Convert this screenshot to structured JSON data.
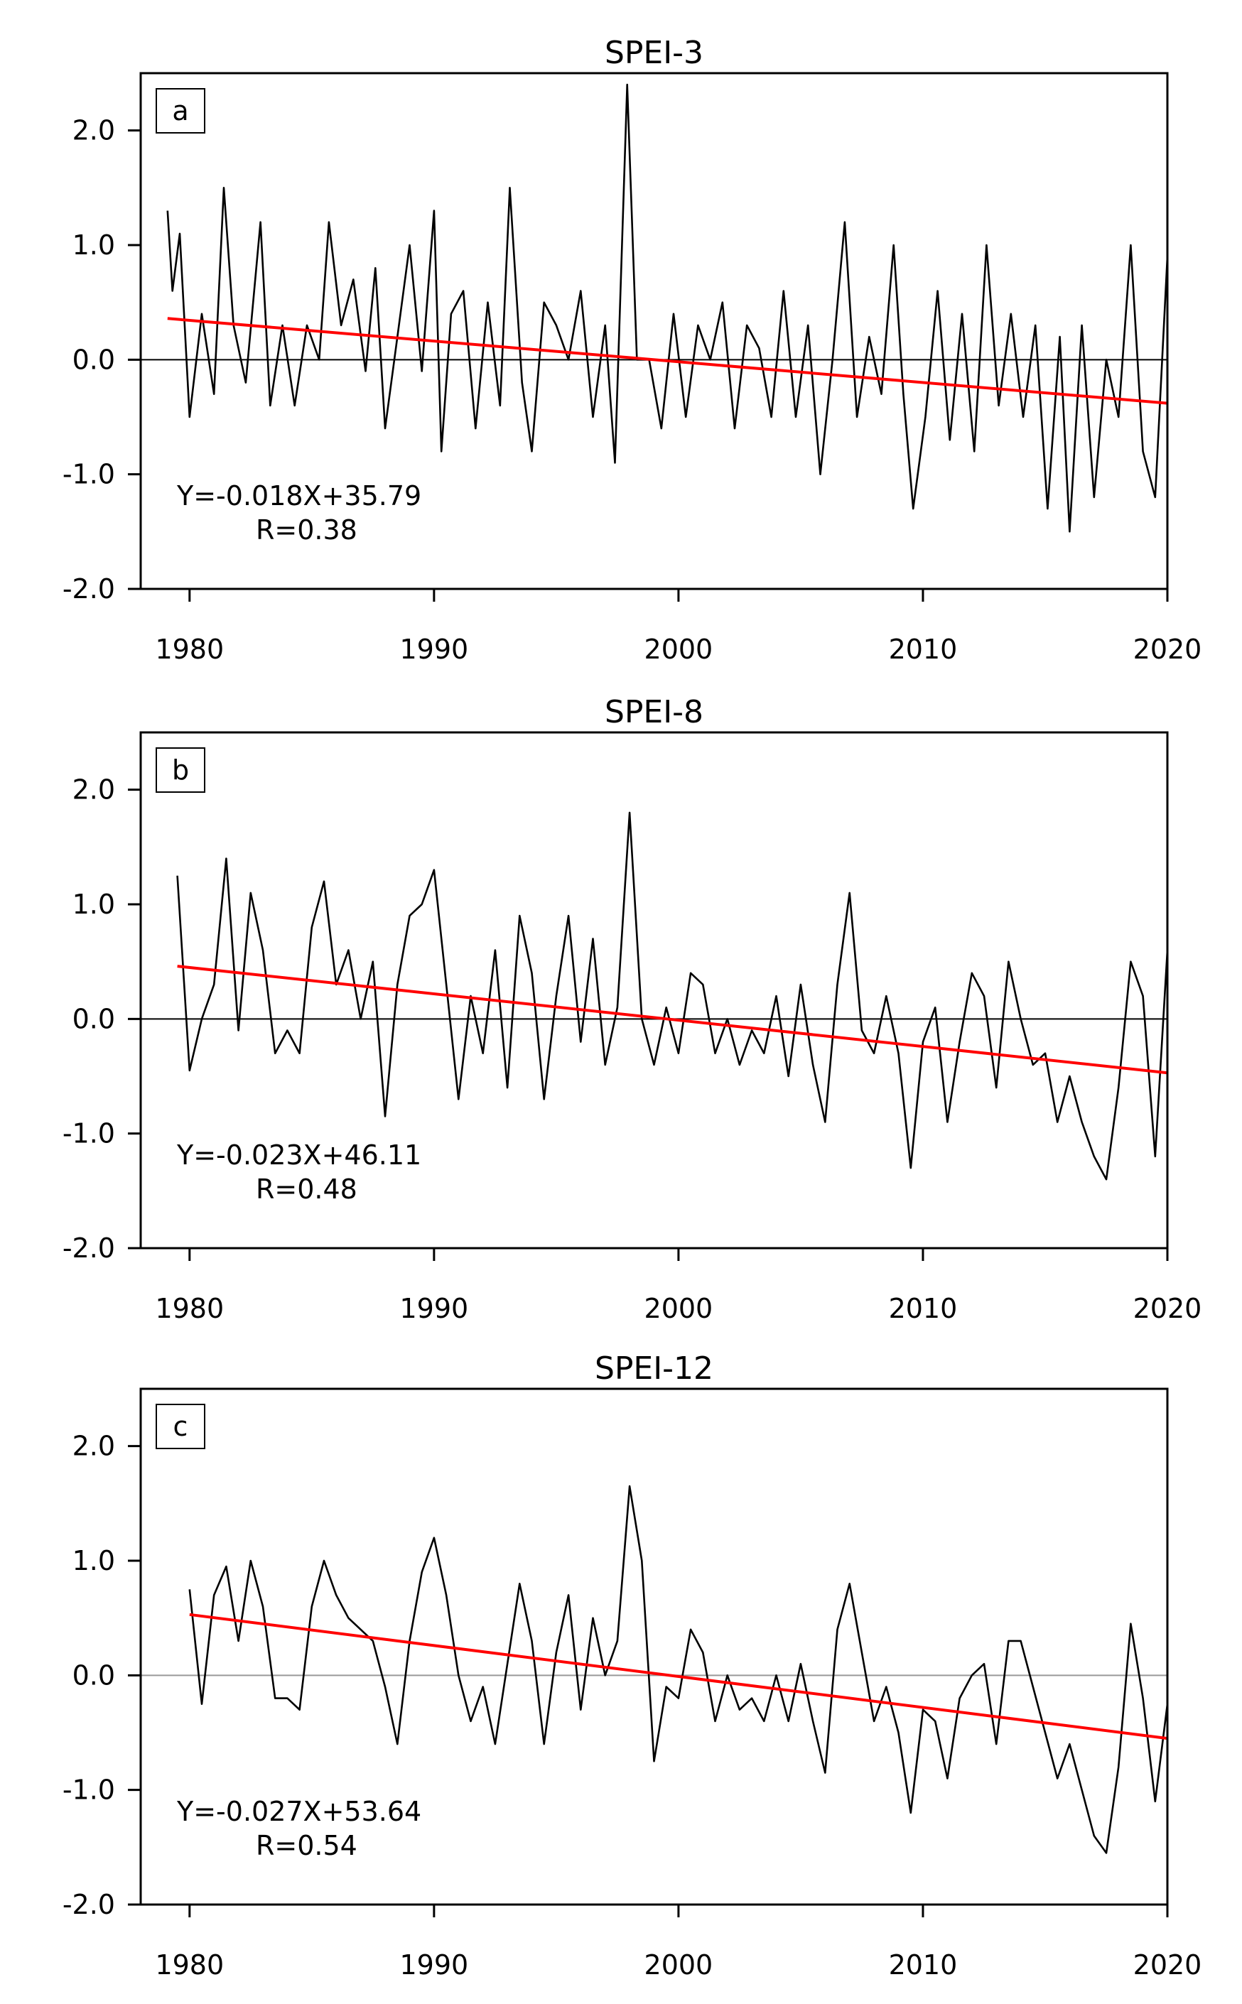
{
  "chart_data": [
    {
      "type": "line",
      "title": "SPEI-3",
      "panel_label": "a",
      "annotations": [
        "Y=-0.018X+35.79",
        "R=0.38"
      ],
      "xlim": [
        1978,
        2020
      ],
      "xticks": [
        1980,
        1990,
        2000,
        2010,
        2020
      ],
      "ylim": [
        -2,
        2.5
      ],
      "yticks": [
        {
          "value": -2,
          "label": "-2.0"
        },
        {
          "value": -1,
          "label": "-1.0"
        },
        {
          "value": 0,
          "label": "0.0"
        },
        {
          "value": 1,
          "label": "1.0"
        },
        {
          "value": 2,
          "label": "2.0"
        }
      ],
      "hline": 0,
      "hline_color": "#000000",
      "series": [
        {
          "color": "#000000",
          "x": [
            1979.1,
            1979.3,
            1979.6,
            1980.0,
            1980.5,
            1981.0,
            1981.4,
            1981.8,
            1982.3,
            1982.9,
            1983.3,
            1983.8,
            1984.3,
            1984.8,
            1985.3,
            1985.7,
            1986.2,
            1986.7,
            1987.2,
            1987.6,
            1988.0,
            1988.5,
            1989.0,
            1989.5,
            1990.0,
            1990.3,
            1990.7,
            1991.2,
            1991.7,
            1992.2,
            1992.7,
            1993.1,
            1993.6,
            1994.0,
            1994.5,
            1995.0,
            1995.5,
            1996.0,
            1996.5,
            1997.0,
            1997.4,
            1997.9,
            1998.3,
            1998.8,
            1999.3,
            1999.8,
            2000.3,
            2000.8,
            2001.3,
            2001.8,
            2002.3,
            2002.8,
            2003.3,
            2003.8,
            2004.3,
            2004.8,
            2005.3,
            2005.8,
            2006.3,
            2006.8,
            2007.3,
            2007.8,
            2008.3,
            2008.8,
            2009.2,
            2009.6,
            2010.1,
            2010.6,
            2011.1,
            2011.6,
            2012.1,
            2012.6,
            2013.1,
            2013.6,
            2014.1,
            2014.6,
            2015.1,
            2015.6,
            2016.0,
            2016.5,
            2017.0,
            2017.5,
            2018.0,
            2018.5,
            2019.0,
            2019.5,
            2020.0
          ],
          "values": [
            1.3,
            0.6,
            1.1,
            -0.5,
            0.4,
            -0.3,
            1.5,
            0.3,
            -0.2,
            1.2,
            -0.4,
            0.3,
            -0.4,
            0.3,
            0.0,
            1.2,
            0.3,
            0.7,
            -0.1,
            0.8,
            -0.6,
            0.2,
            1.0,
            -0.1,
            1.3,
            -0.8,
            0.4,
            0.6,
            -0.6,
            0.5,
            -0.4,
            1.5,
            -0.2,
            -0.8,
            0.5,
            0.3,
            0.0,
            0.6,
            -0.5,
            0.3,
            -0.9,
            2.4,
            0.0,
            0.0,
            -0.6,
            0.4,
            -0.5,
            0.3,
            0.0,
            0.5,
            -0.6,
            0.3,
            0.1,
            -0.5,
            0.6,
            -0.5,
            0.3,
            -1.0,
            0.0,
            1.2,
            -0.5,
            0.2,
            -0.3,
            1.0,
            -0.3,
            -1.3,
            -0.5,
            0.6,
            -0.7,
            0.4,
            -0.8,
            1.0,
            -0.4,
            0.4,
            -0.5,
            0.3,
            -1.3,
            0.2,
            -1.5,
            0.3,
            -1.2,
            0.0,
            -0.5,
            1.0,
            -0.8,
            -1.2,
            0.9
          ]
        },
        {
          "color": "#ff0000",
          "x": [
            1979.1,
            2020
          ],
          "values": [
            0.36,
            -0.38
          ]
        }
      ]
    },
    {
      "type": "line",
      "title": "SPEI-8",
      "panel_label": "b",
      "annotations": [
        "Y=-0.023X+46.11",
        "R=0.48"
      ],
      "xlim": [
        1978,
        2020
      ],
      "xticks": [
        1980,
        1990,
        2000,
        2010,
        2020
      ],
      "ylim": [
        -2,
        2.5
      ],
      "yticks": [
        {
          "value": -2,
          "label": "-2.0"
        },
        {
          "value": -1,
          "label": "-1.0"
        },
        {
          "value": 0,
          "label": "0.0"
        },
        {
          "value": 1,
          "label": "1.0"
        },
        {
          "value": 2,
          "label": "2.0"
        }
      ],
      "hline": 0,
      "hline_color": "#000000",
      "series": [
        {
          "color": "#000000",
          "x": [
            1979.5,
            1980.0,
            1980.5,
            1981.0,
            1981.5,
            1982.0,
            1982.5,
            1983.0,
            1983.5,
            1984.0,
            1984.5,
            1985.0,
            1985.5,
            1986.0,
            1986.5,
            1987.0,
            1987.5,
            1988.0,
            1988.5,
            1989.0,
            1989.5,
            1990.0,
            1990.5,
            1991.0,
            1991.5,
            1992.0,
            1992.5,
            1993.0,
            1993.5,
            1994.0,
            1994.5,
            1995.0,
            1995.5,
            1996.0,
            1996.5,
            1997.0,
            1997.5,
            1998.0,
            1998.5,
            1999.0,
            1999.5,
            2000.0,
            2000.5,
            2001.0,
            2001.5,
            2002.0,
            2002.5,
            2003.0,
            2003.5,
            2004.0,
            2004.5,
            2005.0,
            2005.5,
            2006.0,
            2006.5,
            2007.0,
            2007.5,
            2008.0,
            2008.5,
            2009.0,
            2009.5,
            2010.0,
            2010.5,
            2011.0,
            2011.5,
            2012.0,
            2012.5,
            2013.0,
            2013.5,
            2014.0,
            2014.5,
            2015.0,
            2015.5,
            2016.0,
            2016.5,
            2017.0,
            2017.5,
            2018.0,
            2018.5,
            2019.0,
            2019.5,
            2020.0
          ],
          "values": [
            1.25,
            -0.45,
            0.0,
            0.3,
            1.4,
            -0.1,
            1.1,
            0.6,
            -0.3,
            -0.1,
            -0.3,
            0.8,
            1.2,
            0.3,
            0.6,
            0.0,
            0.5,
            -0.85,
            0.3,
            0.9,
            1.0,
            1.3,
            0.3,
            -0.7,
            0.2,
            -0.3,
            0.6,
            -0.6,
            0.9,
            0.4,
            -0.7,
            0.2,
            0.9,
            -0.2,
            0.7,
            -0.4,
            0.1,
            1.8,
            0.0,
            -0.4,
            0.1,
            -0.3,
            0.4,
            0.3,
            -0.3,
            0.0,
            -0.4,
            -0.1,
            -0.3,
            0.2,
            -0.5,
            0.3,
            -0.4,
            -0.9,
            0.3,
            1.1,
            -0.1,
            -0.3,
            0.2,
            -0.3,
            -1.3,
            -0.2,
            0.1,
            -0.9,
            -0.2,
            0.4,
            0.2,
            -0.6,
            0.5,
            0.0,
            -0.4,
            -0.3,
            -0.9,
            -0.5,
            -0.9,
            -1.2,
            -1.4,
            -0.6,
            0.5,
            0.2,
            -1.2,
            0.6
          ]
        },
        {
          "color": "#ff0000",
          "x": [
            1979.5,
            2020
          ],
          "values": [
            0.46,
            -0.47
          ]
        }
      ]
    },
    {
      "type": "line",
      "title": "SPEI-12",
      "panel_label": "c",
      "annotations": [
        "Y=-0.027X+53.64",
        "R=0.54"
      ],
      "xlim": [
        1978,
        2020
      ],
      "xticks": [
        1980,
        1990,
        2000,
        2010,
        2020
      ],
      "ylim": [
        -2,
        2.5
      ],
      "yticks": [
        {
          "value": -2,
          "label": "-2.0"
        },
        {
          "value": -1,
          "label": "-1.0"
        },
        {
          "value": 0,
          "label": "0.0"
        },
        {
          "value": 1,
          "label": "1.0"
        },
        {
          "value": 2,
          "label": "2.0"
        }
      ],
      "hline": 0,
      "hline_color": "#999999",
      "series": [
        {
          "color": "#000000",
          "x": [
            1980.0,
            1980.5,
            1981.0,
            1981.5,
            1982.0,
            1982.5,
            1983.0,
            1983.5,
            1984.0,
            1984.5,
            1985.0,
            1985.5,
            1986.0,
            1986.5,
            1987.0,
            1987.5,
            1988.0,
            1988.5,
            1989.0,
            1989.5,
            1990.0,
            1990.5,
            1991.0,
            1991.5,
            1992.0,
            1992.5,
            1993.0,
            1993.5,
            1994.0,
            1994.5,
            1995.0,
            1995.5,
            1996.0,
            1996.5,
            1997.0,
            1997.5,
            1998.0,
            1998.5,
            1999.0,
            1999.5,
            2000.0,
            2000.5,
            2001.0,
            2001.5,
            2002.0,
            2002.5,
            2003.0,
            2003.5,
            2004.0,
            2004.5,
            2005.0,
            2005.5,
            2006.0,
            2006.5,
            2007.0,
            2007.5,
            2008.0,
            2008.5,
            2009.0,
            2009.5,
            2010.0,
            2010.5,
            2011.0,
            2011.5,
            2012.0,
            2012.5,
            2013.0,
            2013.5,
            2014.0,
            2014.5,
            2015.0,
            2015.5,
            2016.0,
            2016.5,
            2017.0,
            2017.5,
            2018.0,
            2018.5,
            2019.0,
            2019.5,
            2020.0
          ],
          "values": [
            0.75,
            -0.25,
            0.7,
            0.95,
            0.3,
            1.0,
            0.6,
            -0.2,
            -0.2,
            -0.3,
            0.6,
            1.0,
            0.7,
            0.5,
            0.4,
            0.3,
            -0.1,
            -0.6,
            0.3,
            0.9,
            1.2,
            0.7,
            0.0,
            -0.4,
            -0.1,
            -0.6,
            0.1,
            0.8,
            0.3,
            -0.6,
            0.2,
            0.7,
            -0.3,
            0.5,
            0.0,
            0.3,
            1.65,
            1.0,
            -0.75,
            -0.1,
            -0.2,
            0.4,
            0.2,
            -0.4,
            0.0,
            -0.3,
            -0.2,
            -0.4,
            0.0,
            -0.4,
            0.1,
            -0.4,
            -0.85,
            0.4,
            0.8,
            0.2,
            -0.4,
            -0.1,
            -0.5,
            -1.2,
            -0.3,
            -0.4,
            -0.9,
            -0.2,
            0.0,
            0.1,
            -0.6,
            0.3,
            0.3,
            -0.1,
            -0.5,
            -0.9,
            -0.6,
            -1.0,
            -1.4,
            -1.55,
            -0.8,
            0.45,
            -0.2,
            -1.1,
            -0.25
          ]
        },
        {
          "color": "#ff0000",
          "x": [
            1980,
            2020
          ],
          "values": [
            0.53,
            -0.55
          ]
        }
      ]
    }
  ]
}
